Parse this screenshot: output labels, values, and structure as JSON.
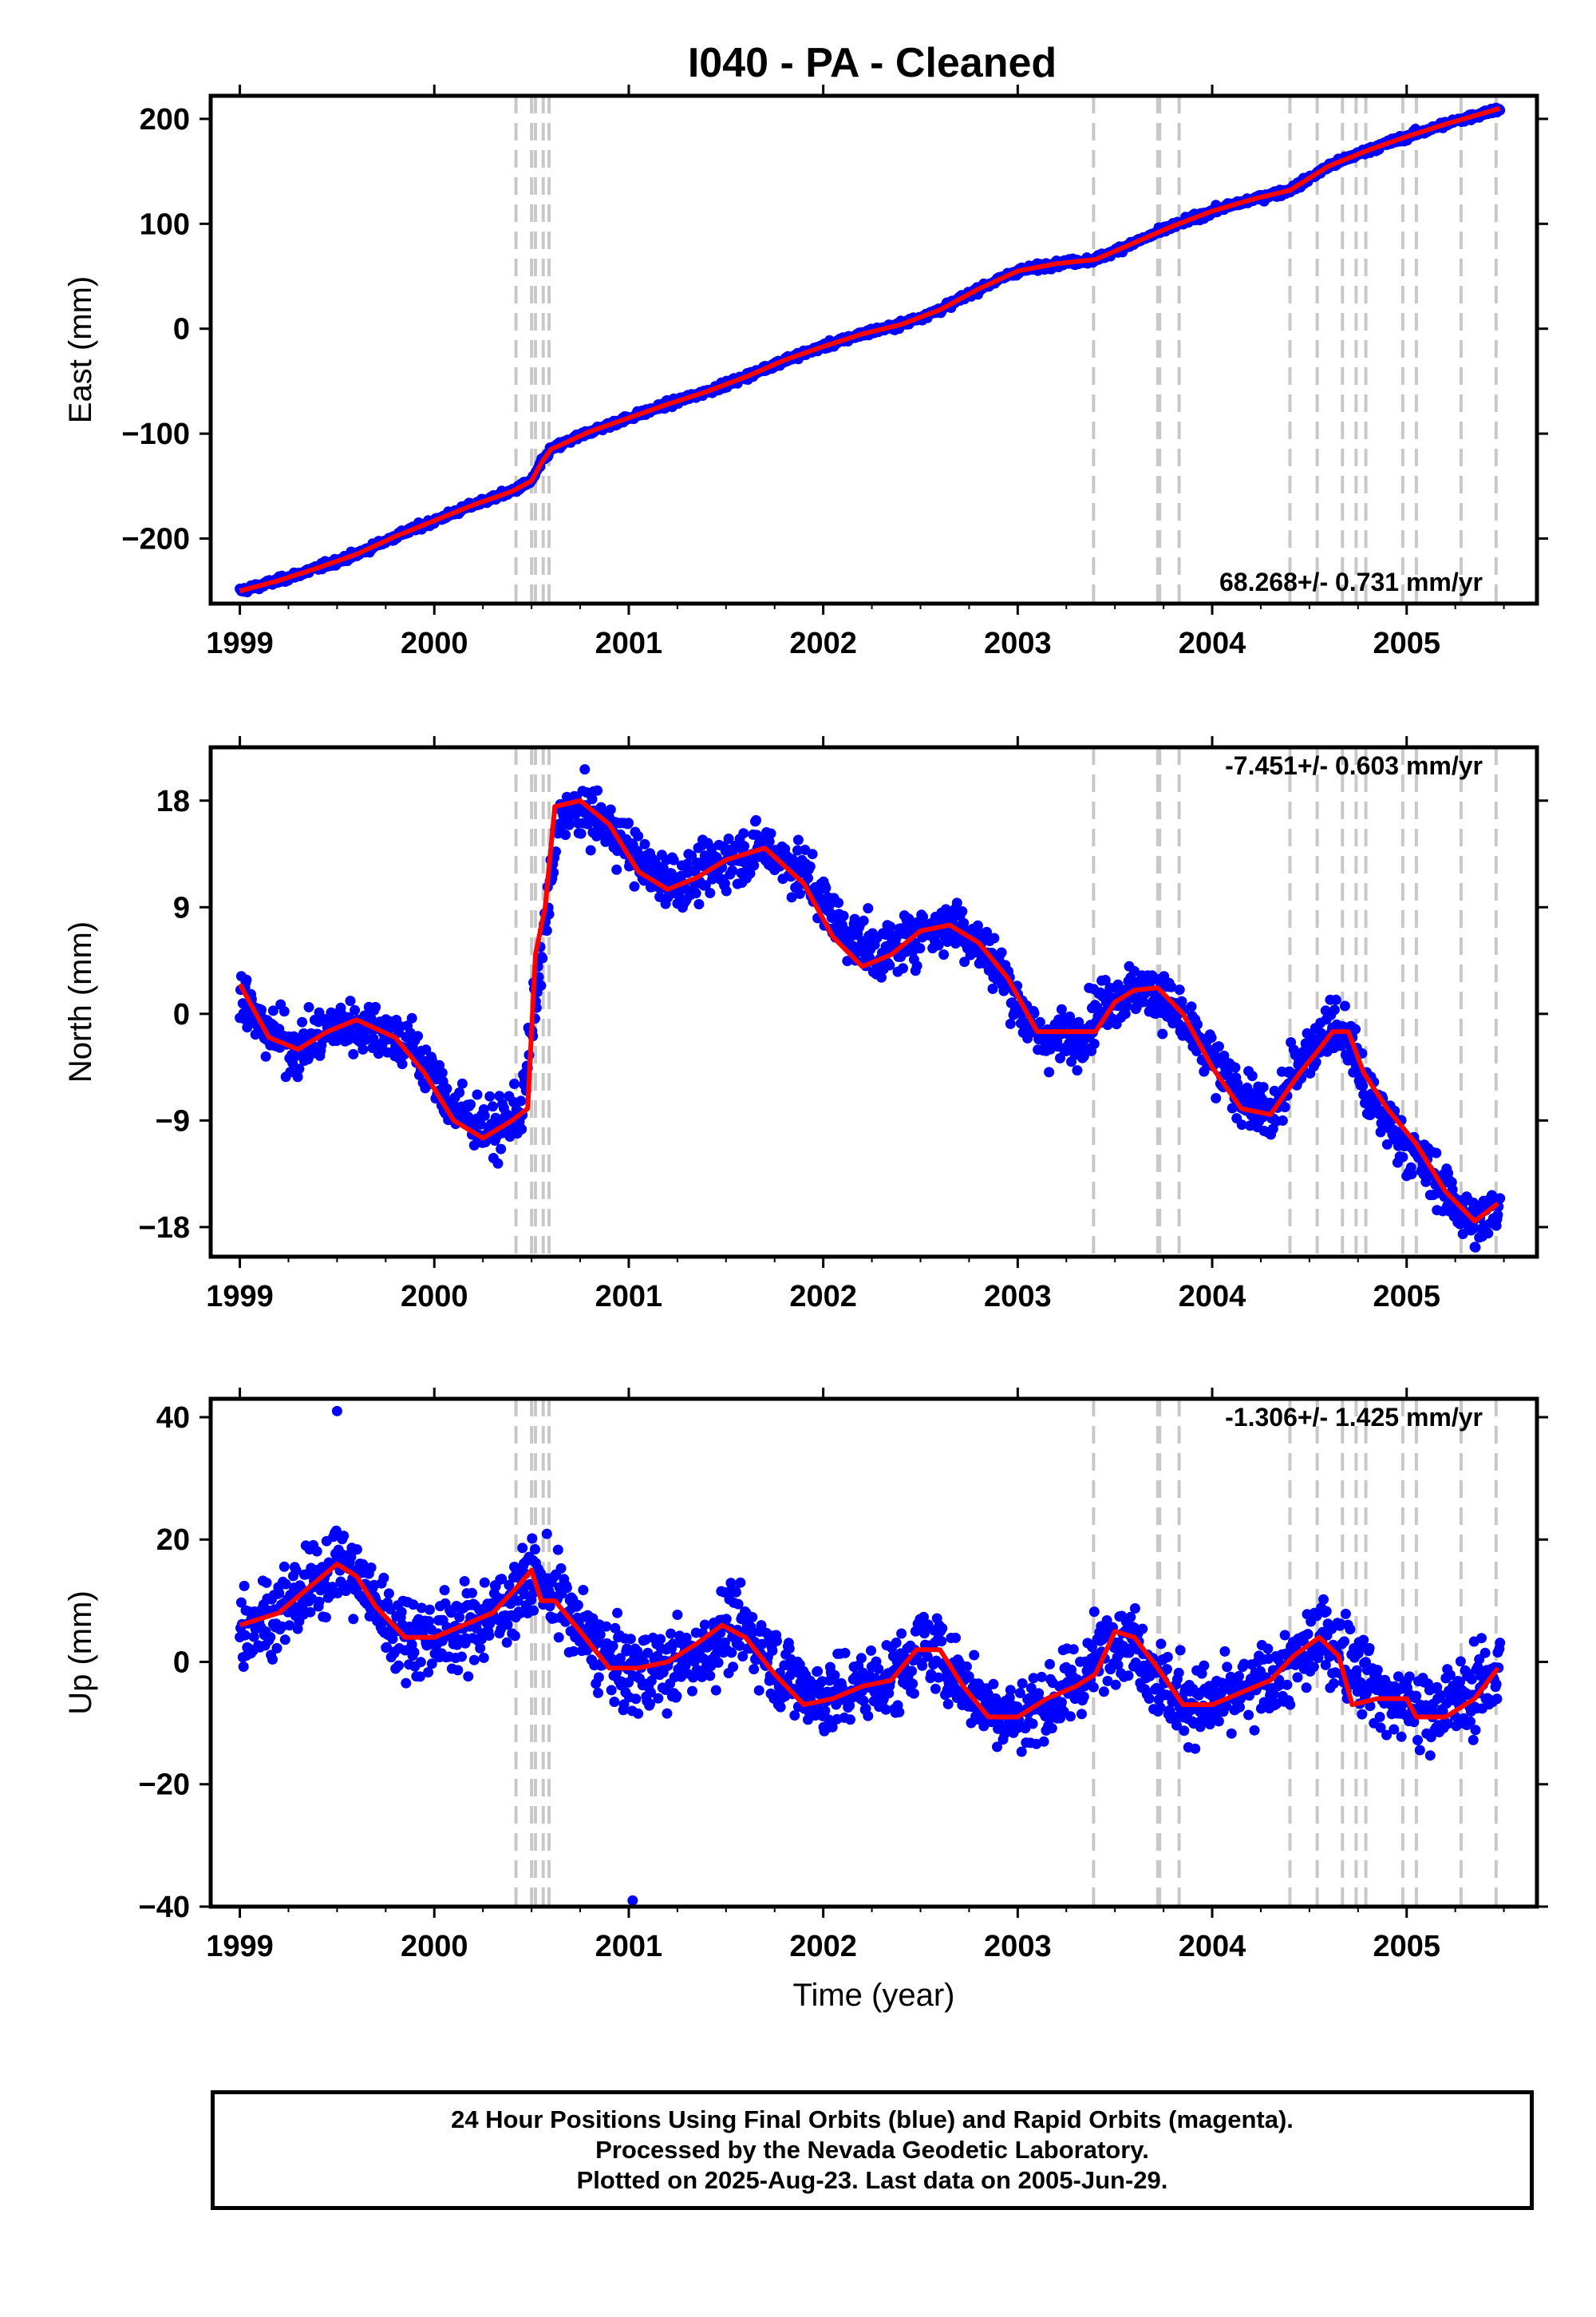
{
  "figure": {
    "title": "I040  - PA - Cleaned"
  },
  "chart_data": [
    {
      "type": "scatter",
      "panel": "east",
      "ylabel": "East (mm)",
      "xlabel": "",
      "xlim": [
        1998.85,
        2005.67
      ],
      "ylim": [
        -262,
        222
      ],
      "x_ticks": [
        1999,
        2000,
        2001,
        2002,
        2003,
        2004,
        2005
      ],
      "y_ticks": [
        -200,
        -100,
        0,
        100,
        200
      ],
      "y_tick_labels": [
        "−200",
        "−100",
        "0",
        "100",
        "200"
      ],
      "rate_label": "68.268+/- 0.731 mm/yr",
      "series": [
        {
          "role": "daily positions",
          "color": "#0000ff",
          "points_x": [
            1999.0,
            1999.2,
            1999.4,
            1999.6,
            1999.8,
            2000.0,
            2000.2,
            2000.4,
            2000.5,
            2000.55,
            2000.6,
            2000.8,
            2001.0,
            2001.2,
            2001.4,
            2001.6,
            2001.8,
            2002.0,
            2002.2,
            2002.4,
            2002.6,
            2002.8,
            2003.0,
            2003.2,
            2003.4,
            2003.6,
            2003.8,
            2004.0,
            2004.2,
            2004.4,
            2004.6,
            2004.8,
            2005.0,
            2005.2,
            2005.48
          ],
          "points_y": [
            -250,
            -240,
            -228,
            -215,
            -198,
            -183,
            -168,
            -155,
            -145,
            -128,
            -115,
            -98,
            -85,
            -72,
            -60,
            -46,
            -30,
            -17,
            -5,
            4,
            18,
            38,
            55,
            62,
            66,
            82,
            98,
            112,
            123,
            132,
            155,
            170,
            183,
            195,
            210
          ]
        },
        {
          "role": "model fit",
          "color": "#ff0000",
          "points_x": [
            1999.0,
            1999.2,
            1999.4,
            1999.6,
            1999.8,
            2000.0,
            2000.2,
            2000.4,
            2000.5,
            2000.55,
            2000.6,
            2000.8,
            2001.0,
            2001.2,
            2001.4,
            2001.6,
            2001.8,
            2002.0,
            2002.2,
            2002.4,
            2002.6,
            2002.8,
            2003.0,
            2003.2,
            2003.4,
            2003.6,
            2003.8,
            2004.0,
            2004.2,
            2004.4,
            2004.6,
            2004.8,
            2005.0,
            2005.2,
            2005.48
          ],
          "points_y": [
            -250,
            -240,
            -228,
            -215,
            -198,
            -183,
            -168,
            -155,
            -145,
            -128,
            -115,
            -98,
            -85,
            -72,
            -60,
            -46,
            -30,
            -17,
            -5,
            4,
            18,
            38,
            55,
            62,
            66,
            82,
            98,
            112,
            123,
            132,
            155,
            170,
            183,
            195,
            210
          ]
        }
      ],
      "grid": false
    },
    {
      "type": "scatter",
      "panel": "north",
      "ylabel": "North (mm)",
      "xlabel": "",
      "xlim": [
        1998.85,
        2005.67
      ],
      "ylim": [
        -20.5,
        22.5
      ],
      "x_ticks": [
        1999,
        2000,
        2001,
        2002,
        2003,
        2004,
        2005
      ],
      "y_ticks": [
        -18,
        -9,
        0,
        9,
        18
      ],
      "y_tick_labels": [
        "−18",
        "−9",
        "0",
        "9",
        "18"
      ],
      "rate_label": "-7.451+/- 0.603 mm/yr",
      "series": [
        {
          "role": "daily positions",
          "color": "#0000ff",
          "points_x": [
            1999.0,
            1999.1,
            1999.3,
            1999.5,
            1999.7,
            1999.9,
            2000.1,
            2000.3,
            2000.45,
            2000.55,
            2000.65,
            2000.8,
            2000.95,
            2001.1,
            2001.3,
            2001.5,
            2001.7,
            2001.9,
            2002.1,
            2002.3,
            2002.5,
            2002.7,
            2002.9,
            2003.1,
            2003.3,
            2003.45,
            2003.6,
            2003.75,
            2003.9,
            2004.1,
            2004.3,
            2004.45,
            2004.6,
            2004.7,
            2004.8,
            2005.0,
            2005.2,
            2005.35,
            2005.48
          ],
          "points_y": [
            2,
            -1,
            -3,
            -1,
            -1,
            -3,
            -8,
            -10,
            -8,
            5,
            17,
            17,
            15,
            12,
            11,
            13,
            14,
            12,
            7,
            5,
            7,
            7.5,
            4,
            -2,
            -2,
            1,
            2,
            1.5,
            -2,
            -6,
            -9,
            -4,
            -1,
            -2,
            -7,
            -11,
            -15,
            -18,
            -16
          ]
        },
        {
          "role": "model fit",
          "color": "#ff0000",
          "points_x": [
            1999.0,
            1999.15,
            1999.3,
            1999.45,
            1999.6,
            1999.8,
            1999.95,
            2000.1,
            2000.25,
            2000.4,
            2000.48,
            2000.52,
            2000.57,
            2000.62,
            2000.75,
            2000.9,
            2001.05,
            2001.2,
            2001.35,
            2001.5,
            2001.7,
            2001.9,
            2002.05,
            2002.2,
            2002.35,
            2002.5,
            2002.65,
            2002.8,
            2002.95,
            2003.1,
            2003.25,
            2003.4,
            2003.5,
            2003.6,
            2003.72,
            2003.85,
            2004.0,
            2004.15,
            2004.3,
            2004.45,
            2004.55,
            2004.62,
            2004.7,
            2004.78,
            2004.9,
            2005.05,
            2005.2,
            2005.35,
            2005.47
          ],
          "points_y": [
            2.5,
            -2,
            -3,
            -1.5,
            -0.5,
            -2,
            -5,
            -9,
            -10.5,
            -9,
            -8,
            5,
            9,
            17.5,
            18,
            16,
            12,
            10.5,
            11.5,
            13,
            14,
            11,
            6.5,
            4,
            5,
            7,
            7.5,
            6,
            3,
            -1.5,
            -1.5,
            -1.5,
            1,
            2,
            2.2,
            0,
            -4.5,
            -8,
            -8.5,
            -5,
            -3,
            -1.5,
            -1.5,
            -5,
            -8,
            -11,
            -15,
            -17.5,
            -16
          ]
        }
      ],
      "grid": false
    },
    {
      "type": "scatter",
      "panel": "up",
      "ylabel": "Up (mm)",
      "xlabel": "Time (year)",
      "xlim": [
        1998.85,
        2005.67
      ],
      "ylim": [
        -40,
        43
      ],
      "x_ticks": [
        1999,
        2000,
        2001,
        2002,
        2003,
        2004,
        2005
      ],
      "y_ticks": [
        -40,
        -20,
        0,
        20,
        40
      ],
      "y_tick_labels": [
        "−40",
        "−20",
        "0",
        "20",
        "40"
      ],
      "rate_label": "-1.306+/- 1.425 mm/yr",
      "series": [
        {
          "role": "daily positions",
          "color": "#0000ff",
          "points_x": [
            1999.0,
            1999.2,
            1999.4,
            1999.5,
            1999.65,
            1999.8,
            2000.0,
            2000.2,
            2000.35,
            2000.5,
            2000.6,
            2000.8,
            2001.0,
            2001.2,
            2001.4,
            2001.5,
            2001.6,
            2001.8,
            2002.0,
            2002.2,
            2002.4,
            2002.5,
            2002.6,
            2002.8,
            2003.0,
            2003.2,
            2003.35,
            2003.5,
            2003.6,
            2003.8,
            2004.0,
            2004.2,
            2004.4,
            2004.55,
            2004.7,
            2004.9,
            2005.1,
            2005.3,
            2005.48
          ],
          "points_y": [
            6,
            8,
            13,
            17,
            12,
            5,
            4,
            6,
            9,
            14,
            12,
            3,
            -2,
            -1,
            2,
            6,
            5,
            -2,
            -6,
            -4,
            -2,
            3,
            1,
            -6,
            -9,
            -6,
            -2,
            5,
            3,
            -6,
            -7,
            -5,
            -1,
            4,
            1,
            -6,
            -8,
            -6,
            -1
          ],
          "outliers_x": [
            1999.5,
            2001.02
          ],
          "outliers_y": [
            41,
            -39
          ]
        },
        {
          "role": "model fit",
          "color": "#ff0000",
          "points_x": [
            1999.0,
            1999.2,
            1999.35,
            1999.5,
            1999.6,
            1999.7,
            1999.85,
            2000.0,
            2000.15,
            2000.3,
            2000.42,
            2000.5,
            2000.55,
            2000.62,
            2000.75,
            2000.9,
            2001.05,
            2001.2,
            2001.35,
            2001.48,
            2001.6,
            2001.75,
            2001.9,
            2002.05,
            2002.2,
            2002.35,
            2002.48,
            2002.6,
            2002.72,
            2002.85,
            2003.0,
            2003.15,
            2003.3,
            2003.4,
            2003.5,
            2003.6,
            2003.72,
            2003.85,
            2004.0,
            2004.15,
            2004.3,
            2004.42,
            2004.55,
            2004.65,
            2004.72,
            2004.85,
            2005.0,
            2005.05,
            2005.2,
            2005.35,
            2005.47
          ],
          "points_y": [
            6,
            8,
            12,
            16,
            14,
            9,
            4,
            4,
            6,
            8,
            12,
            15,
            10,
            10,
            5,
            -1,
            -1,
            0,
            3,
            6,
            4,
            -2,
            -7,
            -6,
            -4,
            -3,
            2,
            2,
            -4,
            -9,
            -9,
            -6,
            -4,
            -2,
            5,
            4,
            -1,
            -7,
            -7,
            -5,
            -3,
            1,
            4,
            1,
            -7,
            -6,
            -6,
            -9,
            -9,
            -6,
            -1
          ]
        }
      ],
      "grid": false
    }
  ],
  "event_lines": {
    "color": "#c8c8c8",
    "years": [
      2000.42,
      2000.5,
      2000.52,
      2000.56,
      2000.59,
      2003.39,
      2003.72,
      2003.73,
      2003.83,
      2004.4,
      2004.54,
      2004.67,
      2004.74,
      2004.79,
      2004.98,
      2005.05,
      2005.28,
      2005.46
    ]
  },
  "footer": {
    "line1": "24 Hour Positions Using Final Orbits (blue) and Rapid Orbits (magenta).",
    "line2": "Processed by the Nevada Geodetic Laboratory.",
    "line3": "Plotted on 2025-Aug-23. Last data on 2005-Jun-29."
  }
}
